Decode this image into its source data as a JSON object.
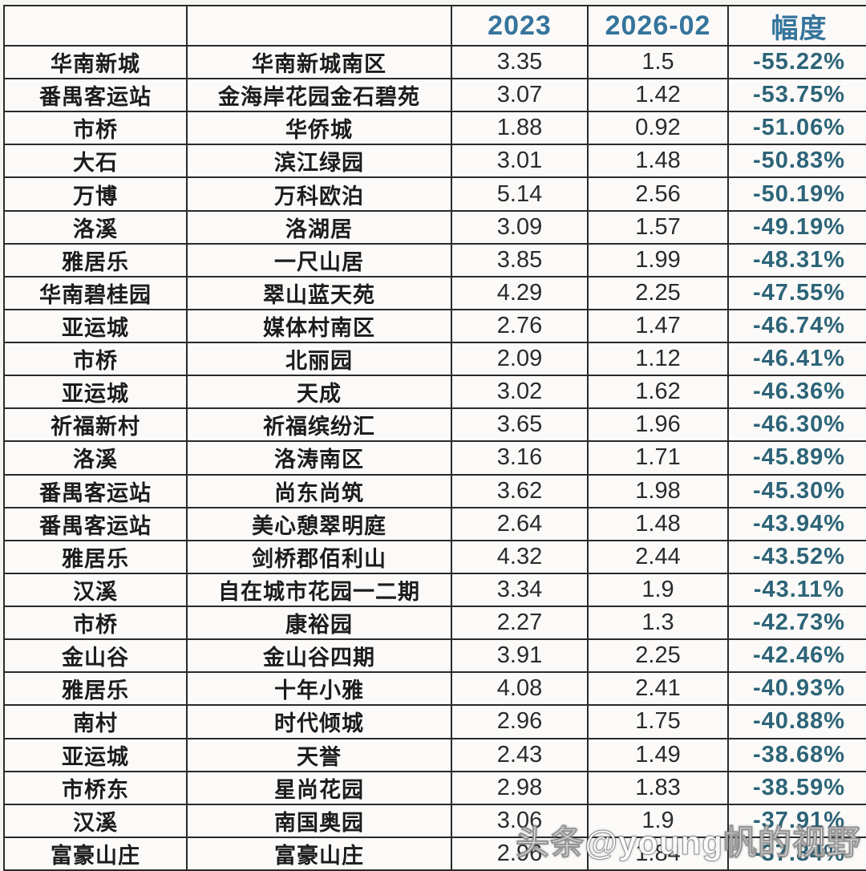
{
  "table": {
    "header": {
      "area": "",
      "community": "",
      "year_2023": "2023",
      "period_2026": "2026-02",
      "change": "幅度"
    },
    "rows": [
      {
        "area": "华南新城",
        "community": "华南新城南区",
        "y2023": "3.35",
        "y2026": "1.5",
        "change": "-55.22%"
      },
      {
        "area": "番禺客运站",
        "community": "金海岸花园金石碧苑",
        "y2023": "3.07",
        "y2026": "1.42",
        "change": "-53.75%"
      },
      {
        "area": "市桥",
        "community": "华侨城",
        "y2023": "1.88",
        "y2026": "0.92",
        "change": "-51.06%"
      },
      {
        "area": "大石",
        "community": "滨江绿园",
        "y2023": "3.01",
        "y2026": "1.48",
        "change": "-50.83%"
      },
      {
        "area": "万博",
        "community": "万科欧泊",
        "y2023": "5.14",
        "y2026": "2.56",
        "change": "-50.19%"
      },
      {
        "area": "洛溪",
        "community": "洛湖居",
        "y2023": "3.09",
        "y2026": "1.57",
        "change": "-49.19%"
      },
      {
        "area": "雅居乐",
        "community": "一尺山居",
        "y2023": "3.85",
        "y2026": "1.99",
        "change": "-48.31%"
      },
      {
        "area": "华南碧桂园",
        "community": "翠山蓝天苑",
        "y2023": "4.29",
        "y2026": "2.25",
        "change": "-47.55%"
      },
      {
        "area": "亚运城",
        "community": "媒体村南区",
        "y2023": "2.76",
        "y2026": "1.47",
        "change": "-46.74%"
      },
      {
        "area": "市桥",
        "community": "北丽园",
        "y2023": "2.09",
        "y2026": "1.12",
        "change": "-46.41%"
      },
      {
        "area": "亚运城",
        "community": "天成",
        "y2023": "3.02",
        "y2026": "1.62",
        "change": "-46.36%"
      },
      {
        "area": "祈福新村",
        "community": "祈福缤纷汇",
        "y2023": "3.65",
        "y2026": "1.96",
        "change": "-46.30%"
      },
      {
        "area": "洛溪",
        "community": "洛涛南区",
        "y2023": "3.16",
        "y2026": "1.71",
        "change": "-45.89%"
      },
      {
        "area": "番禺客运站",
        "community": "尚东尚筑",
        "y2023": "3.62",
        "y2026": "1.98",
        "change": "-45.30%"
      },
      {
        "area": "番禺客运站",
        "community": "美心憩翠明庭",
        "y2023": "2.64",
        "y2026": "1.48",
        "change": "-43.94%"
      },
      {
        "area": "雅居乐",
        "community": "剑桥郡佰利山",
        "y2023": "4.32",
        "y2026": "2.44",
        "change": "-43.52%"
      },
      {
        "area": "汉溪",
        "community": "自在城市花园一二期",
        "y2023": "3.34",
        "y2026": "1.9",
        "change": "-43.11%"
      },
      {
        "area": "市桥",
        "community": "康裕园",
        "y2023": "2.27",
        "y2026": "1.3",
        "change": "-42.73%"
      },
      {
        "area": "金山谷",
        "community": "金山谷四期",
        "y2023": "3.91",
        "y2026": "2.25",
        "change": "-42.46%"
      },
      {
        "area": "雅居乐",
        "community": "十年小雅",
        "y2023": "4.08",
        "y2026": "2.41",
        "change": "-40.93%"
      },
      {
        "area": "南村",
        "community": "时代倾城",
        "y2023": "2.96",
        "y2026": "1.75",
        "change": "-40.88%"
      },
      {
        "area": "亚运城",
        "community": "天誉",
        "y2023": "2.43",
        "y2026": "1.49",
        "change": "-38.68%"
      },
      {
        "area": "市桥东",
        "community": "星尚花园",
        "y2023": "2.98",
        "y2026": "1.83",
        "change": "-38.59%"
      },
      {
        "area": "汉溪",
        "community": "南国奥园",
        "y2023": "3.06",
        "y2026": "1.9",
        "change": "-37.91%"
      },
      {
        "area": "富豪山庄",
        "community": "富豪山庄",
        "y2023": "2.96",
        "y2026": "1.84",
        "change": "-37.84%"
      }
    ]
  },
  "watermark": "头条@young帆的视野",
  "colors": {
    "header_text": "#35749c",
    "change_text": "#2d6478",
    "body_text": "#1c1c1c",
    "border": "#2a2a2a",
    "background": "#f5f4f1"
  }
}
